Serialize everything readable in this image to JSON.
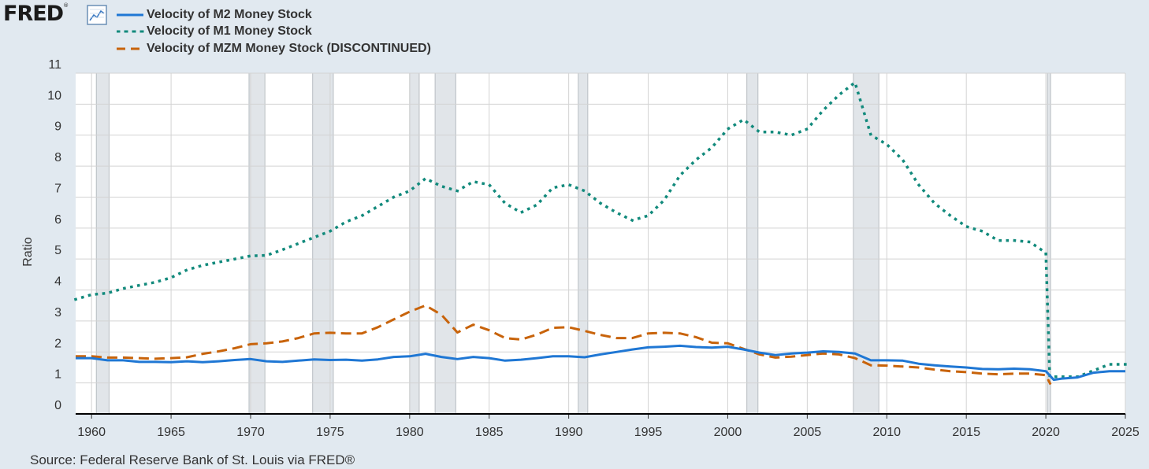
{
  "brand": {
    "name": "FRED",
    "reg": "®",
    "icon": "line-chart-icon"
  },
  "source": "Source: Federal Reserve Bank of St. Louis via FRED®",
  "chart_data": {
    "type": "line",
    "ylabel": "Ratio",
    "xlabel": "",
    "xlim": [
      1959,
      2025
    ],
    "ylim": [
      0,
      11
    ],
    "grid": true,
    "legend_position": "top-left",
    "x_ticks": [
      "1960",
      "1965",
      "1970",
      "1975",
      "1980",
      "1985",
      "1990",
      "1995",
      "2000",
      "2005",
      "2010",
      "2015",
      "2020",
      "2025"
    ],
    "y_ticks": [
      "0",
      "1",
      "2",
      "3",
      "4",
      "5",
      "6",
      "7",
      "8",
      "9",
      "10",
      "11"
    ],
    "recessions": [
      [
        1960.3,
        1961.1
      ],
      [
        1969.9,
        1970.9
      ],
      [
        1973.9,
        1975.2
      ],
      [
        1980.0,
        1980.6
      ],
      [
        1981.6,
        1982.9
      ],
      [
        1990.6,
        1991.2
      ],
      [
        2001.2,
        2001.9
      ],
      [
        2007.9,
        2009.5
      ],
      [
        2020.1,
        2020.3
      ]
    ],
    "series": [
      {
        "name": "Velocity of M2 Money Stock",
        "color": "#1f77d4",
        "style": "solid",
        "points": [
          [
            1959,
            1.8
          ],
          [
            1960,
            1.8
          ],
          [
            1961,
            1.73
          ],
          [
            1962,
            1.73
          ],
          [
            1963,
            1.68
          ],
          [
            1964,
            1.68
          ],
          [
            1965,
            1.67
          ],
          [
            1966,
            1.7
          ],
          [
            1967,
            1.67
          ],
          [
            1968,
            1.7
          ],
          [
            1969,
            1.74
          ],
          [
            1970,
            1.77
          ],
          [
            1971,
            1.7
          ],
          [
            1972,
            1.68
          ],
          [
            1973,
            1.72
          ],
          [
            1974,
            1.76
          ],
          [
            1975,
            1.74
          ],
          [
            1976,
            1.75
          ],
          [
            1977,
            1.72
          ],
          [
            1978,
            1.76
          ],
          [
            1979,
            1.84
          ],
          [
            1980,
            1.86
          ],
          [
            1981,
            1.94
          ],
          [
            1982,
            1.84
          ],
          [
            1983,
            1.77
          ],
          [
            1984,
            1.84
          ],
          [
            1985,
            1.8
          ],
          [
            1986,
            1.72
          ],
          [
            1987,
            1.75
          ],
          [
            1988,
            1.8
          ],
          [
            1989,
            1.86
          ],
          [
            1990,
            1.86
          ],
          [
            1991,
            1.83
          ],
          [
            1992,
            1.92
          ],
          [
            1993,
            2.0
          ],
          [
            1994,
            2.08
          ],
          [
            1995,
            2.15
          ],
          [
            1996,
            2.17
          ],
          [
            1997,
            2.2
          ],
          [
            1998,
            2.16
          ],
          [
            1999,
            2.14
          ],
          [
            2000,
            2.17
          ],
          [
            2001,
            2.08
          ],
          [
            2002,
            1.98
          ],
          [
            2003,
            1.9
          ],
          [
            2004,
            1.95
          ],
          [
            2005,
            1.98
          ],
          [
            2006,
            2.02
          ],
          [
            2007,
            2.0
          ],
          [
            2008,
            1.95
          ],
          [
            2009,
            1.73
          ],
          [
            2010,
            1.73
          ],
          [
            2011,
            1.72
          ],
          [
            2012,
            1.62
          ],
          [
            2013,
            1.57
          ],
          [
            2014,
            1.53
          ],
          [
            2015,
            1.5
          ],
          [
            2016,
            1.45
          ],
          [
            2017,
            1.44
          ],
          [
            2018,
            1.46
          ],
          [
            2019,
            1.44
          ],
          [
            2020,
            1.38
          ],
          [
            2020.5,
            1.1
          ],
          [
            2021,
            1.14
          ],
          [
            2022,
            1.18
          ],
          [
            2023,
            1.33
          ],
          [
            2024,
            1.38
          ],
          [
            2025,
            1.38
          ]
        ]
      },
      {
        "name": "Velocity of M1 Money Stock",
        "color": "#128a7c",
        "style": "dotted",
        "points": [
          [
            1959,
            3.7
          ],
          [
            1960,
            3.85
          ],
          [
            1961,
            3.9
          ],
          [
            1962,
            4.05
          ],
          [
            1963,
            4.15
          ],
          [
            1964,
            4.25
          ],
          [
            1965,
            4.4
          ],
          [
            1966,
            4.65
          ],
          [
            1967,
            4.8
          ],
          [
            1968,
            4.9
          ],
          [
            1969,
            5.0
          ],
          [
            1970,
            5.1
          ],
          [
            1971,
            5.12
          ],
          [
            1972,
            5.3
          ],
          [
            1973,
            5.5
          ],
          [
            1974,
            5.7
          ],
          [
            1975,
            5.9
          ],
          [
            1976,
            6.2
          ],
          [
            1977,
            6.4
          ],
          [
            1978,
            6.7
          ],
          [
            1979,
            7.0
          ],
          [
            1980,
            7.2
          ],
          [
            1981,
            7.6
          ],
          [
            1982,
            7.35
          ],
          [
            1983,
            7.2
          ],
          [
            1984,
            7.5
          ],
          [
            1985,
            7.4
          ],
          [
            1986,
            6.8
          ],
          [
            1987,
            6.5
          ],
          [
            1988,
            6.75
          ],
          [
            1989,
            7.3
          ],
          [
            1990,
            7.4
          ],
          [
            1991,
            7.2
          ],
          [
            1992,
            6.8
          ],
          [
            1993,
            6.5
          ],
          [
            1994,
            6.25
          ],
          [
            1995,
            6.4
          ],
          [
            1996,
            6.9
          ],
          [
            1997,
            7.7
          ],
          [
            1998,
            8.2
          ],
          [
            1999,
            8.6
          ],
          [
            2000,
            9.2
          ],
          [
            2001,
            9.5
          ],
          [
            2002,
            9.1
          ],
          [
            2003,
            9.1
          ],
          [
            2004,
            9.0
          ],
          [
            2005,
            9.2
          ],
          [
            2006,
            9.8
          ],
          [
            2007,
            10.3
          ],
          [
            2008,
            10.7
          ],
          [
            2009,
            9.0
          ],
          [
            2010,
            8.7
          ],
          [
            2011,
            8.2
          ],
          [
            2012,
            7.4
          ],
          [
            2013,
            6.8
          ],
          [
            2014,
            6.4
          ],
          [
            2015,
            6.05
          ],
          [
            2016,
            5.9
          ],
          [
            2017,
            5.6
          ],
          [
            2018,
            5.6
          ],
          [
            2019,
            5.55
          ],
          [
            2020,
            5.2
          ],
          [
            2020.25,
            1.2
          ],
          [
            2021,
            1.2
          ],
          [
            2022,
            1.2
          ],
          [
            2023,
            1.4
          ],
          [
            2024,
            1.6
          ],
          [
            2025,
            1.6
          ]
        ]
      },
      {
        "name": "Velocity of MZM Money Stock (DISCONTINUED)",
        "color": "#c8630a",
        "style": "dashed",
        "points": [
          [
            1959,
            1.86
          ],
          [
            1960,
            1.86
          ],
          [
            1961,
            1.82
          ],
          [
            1962,
            1.82
          ],
          [
            1963,
            1.8
          ],
          [
            1964,
            1.78
          ],
          [
            1965,
            1.8
          ],
          [
            1966,
            1.83
          ],
          [
            1967,
            1.94
          ],
          [
            1968,
            2.02
          ],
          [
            1969,
            2.12
          ],
          [
            1970,
            2.25
          ],
          [
            1971,
            2.28
          ],
          [
            1972,
            2.34
          ],
          [
            1973,
            2.45
          ],
          [
            1974,
            2.6
          ],
          [
            1975,
            2.62
          ],
          [
            1976,
            2.6
          ],
          [
            1977,
            2.6
          ],
          [
            1978,
            2.8
          ],
          [
            1979,
            3.05
          ],
          [
            1980,
            3.3
          ],
          [
            1981,
            3.5
          ],
          [
            1982,
            3.2
          ],
          [
            1983,
            2.63
          ],
          [
            1984,
            2.88
          ],
          [
            1985,
            2.7
          ],
          [
            1986,
            2.45
          ],
          [
            1987,
            2.4
          ],
          [
            1988,
            2.56
          ],
          [
            1989,
            2.78
          ],
          [
            1990,
            2.8
          ],
          [
            1991,
            2.68
          ],
          [
            1992,
            2.55
          ],
          [
            1993,
            2.45
          ],
          [
            1994,
            2.45
          ],
          [
            1995,
            2.6
          ],
          [
            1996,
            2.62
          ],
          [
            1997,
            2.6
          ],
          [
            1998,
            2.48
          ],
          [
            1999,
            2.3
          ],
          [
            2000,
            2.28
          ],
          [
            2001,
            2.1
          ],
          [
            2002,
            1.92
          ],
          [
            2003,
            1.82
          ],
          [
            2004,
            1.85
          ],
          [
            2005,
            1.9
          ],
          [
            2006,
            1.95
          ],
          [
            2007,
            1.92
          ],
          [
            2008,
            1.8
          ],
          [
            2009,
            1.57
          ],
          [
            2010,
            1.56
          ],
          [
            2011,
            1.53
          ],
          [
            2012,
            1.5
          ],
          [
            2013,
            1.43
          ],
          [
            2014,
            1.38
          ],
          [
            2015,
            1.35
          ],
          [
            2016,
            1.3
          ],
          [
            2017,
            1.28
          ],
          [
            2018,
            1.3
          ],
          [
            2019,
            1.3
          ],
          [
            2020,
            1.25
          ],
          [
            2020.3,
            0.95
          ]
        ]
      }
    ]
  }
}
